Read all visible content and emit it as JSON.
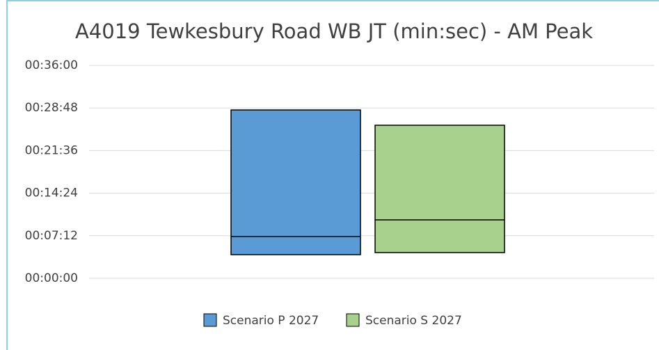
{
  "chart_data": {
    "type": "floating-box",
    "title": "A4019 Tewkesbury Road WB JT (min:sec) - AM Peak",
    "ylim": [
      0,
      2160
    ],
    "yticks": [
      {
        "value": 0,
        "label": "00:00:00"
      },
      {
        "value": 432,
        "label": "00:07:12"
      },
      {
        "value": 864,
        "label": "00:14:24"
      },
      {
        "value": 1296,
        "label": "00:21:36"
      },
      {
        "value": 1728,
        "label": "00:28:48"
      },
      {
        "value": 2160,
        "label": "00:36:00"
      }
    ],
    "grid": true,
    "legend": "bottom",
    "series": [
      {
        "name": "Scenario P 2027",
        "color": "#5b9bd5",
        "min": 240,
        "median": 424,
        "max": 1708
      },
      {
        "name": "Scenario S 2027",
        "color": "#a9d18e",
        "min": 261,
        "median": 593,
        "max": 1553
      }
    ]
  }
}
